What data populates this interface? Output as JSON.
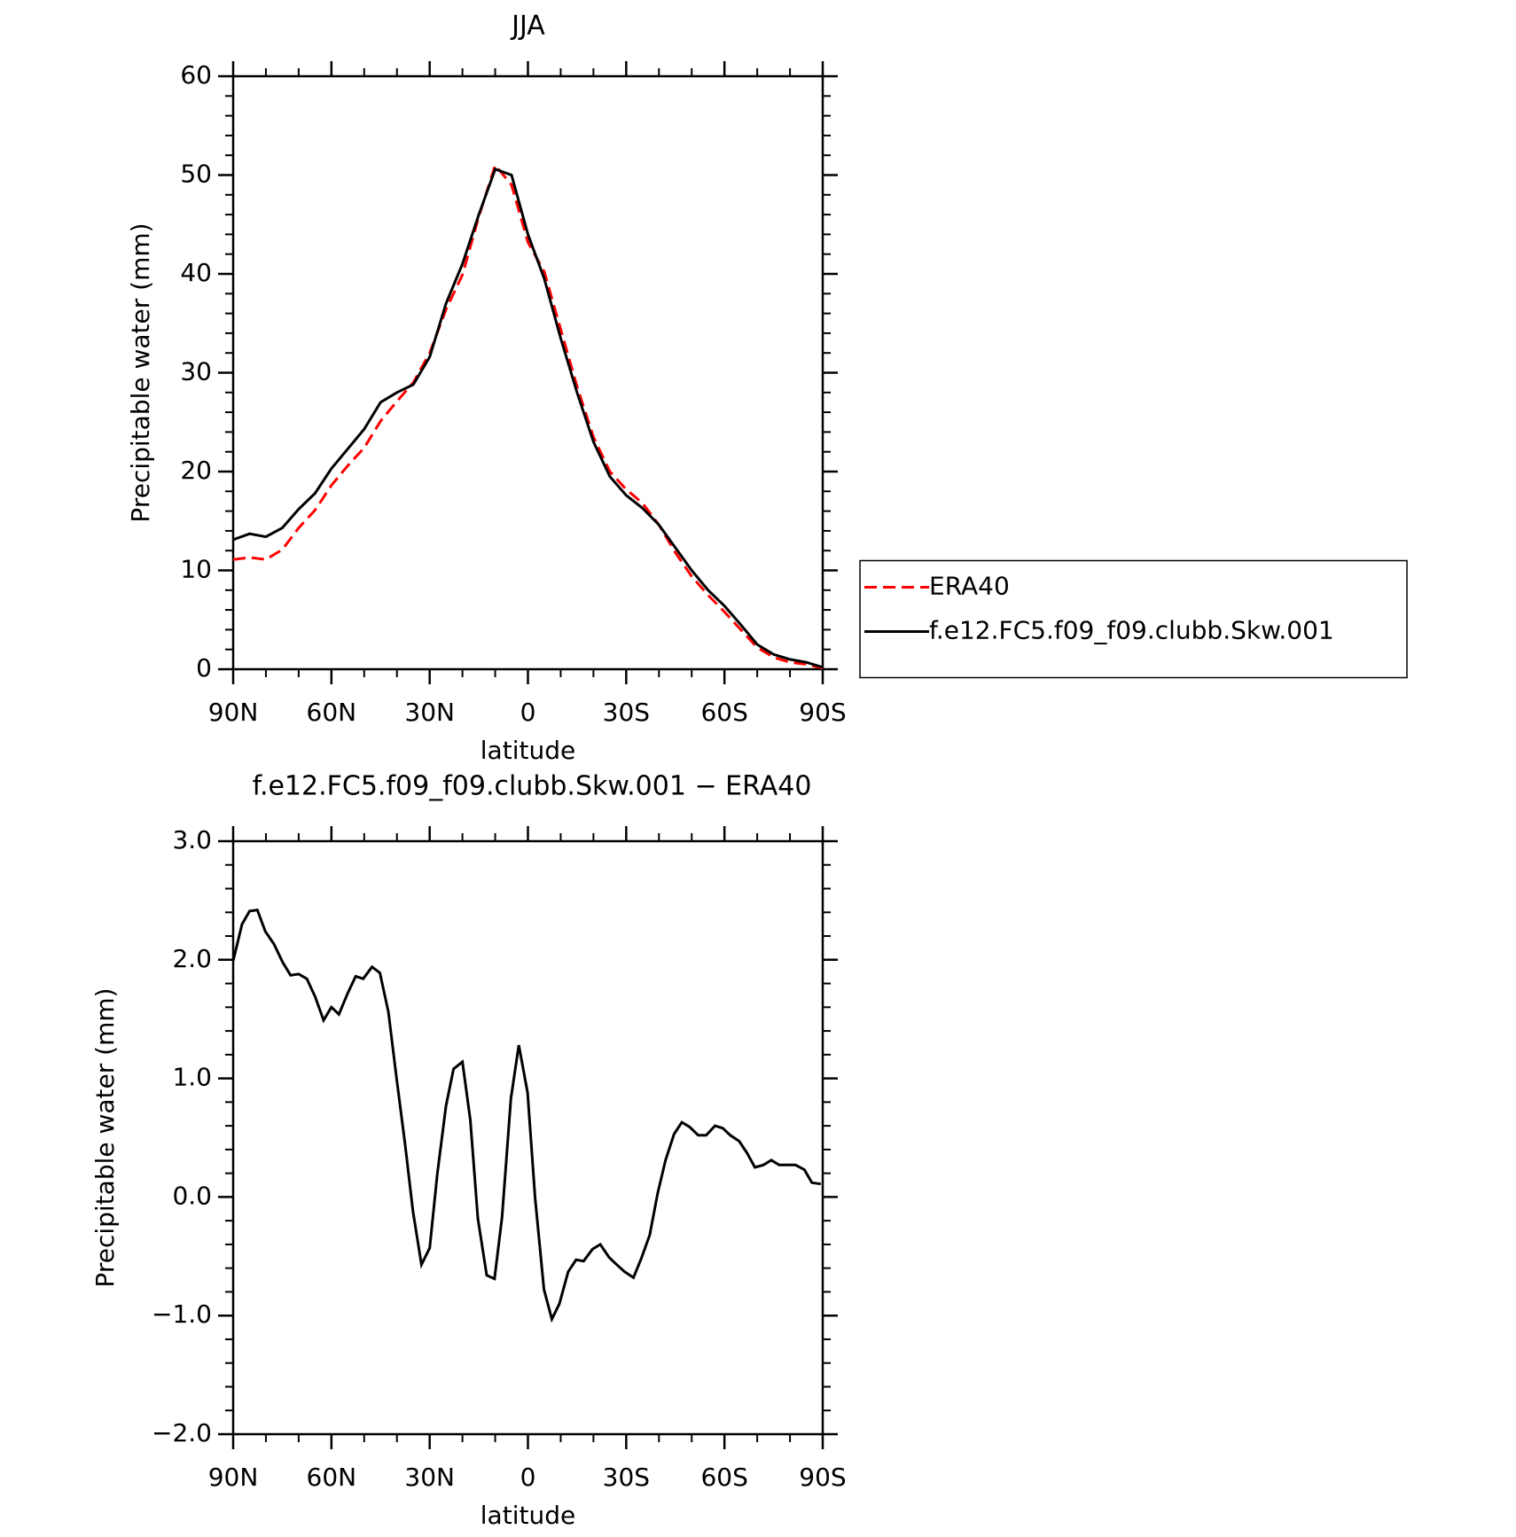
{
  "chart_data": [
    {
      "type": "line",
      "title": "JJA",
      "x_label": "latitude",
      "y_label": "Precipitable water (mm)",
      "x": [
        90,
        85,
        80,
        75,
        70,
        65,
        60,
        55,
        50,
        45,
        40,
        35,
        30,
        25,
        20,
        15,
        10,
        5,
        0,
        -5,
        -10,
        -15,
        -20,
        -25,
        -30,
        -35,
        -40,
        -45,
        -50,
        -55,
        -60,
        -65,
        -70,
        -75,
        -80,
        -85,
        -90
      ],
      "series": [
        {
          "name": "ERA40",
          "color": "#ff0000",
          "line_style": "dashed",
          "values": [
            11.1,
            11.3,
            11.1,
            12.1,
            14.3,
            16.1,
            18.6,
            20.6,
            22.4,
            25.1,
            27.1,
            29.0,
            32.0,
            36.4,
            39.9,
            45.8,
            51.0,
            49.0,
            43.2,
            40.2,
            34.4,
            28.6,
            23.5,
            20.0,
            18.2,
            16.8,
            14.6,
            11.8,
            9.4,
            7.5,
            5.8,
            4.0,
            2.2,
            1.2,
            0.7,
            0.5,
            0.1
          ]
        },
        {
          "name": "f.e12.FC5.f09_f09.clubb.Skw.001",
          "color": "#000000",
          "line_style": "solid",
          "values": [
            13.1,
            13.7,
            13.4,
            14.3,
            16.2,
            17.8,
            20.3,
            22.3,
            24.3,
            27.0,
            28.0,
            28.8,
            31.6,
            37.0,
            41.0,
            46.0,
            50.6,
            50.0,
            44.0,
            39.5,
            33.5,
            28.0,
            23.0,
            19.5,
            17.6,
            16.3,
            14.6,
            12.3,
            10.0,
            8.0,
            6.4,
            4.5,
            2.5,
            1.5,
            1.0,
            0.7,
            0.2
          ]
        }
      ],
      "xlim": [
        90,
        -90
      ],
      "xticks": [
        {
          "value": 90,
          "label": "90N"
        },
        {
          "value": 60,
          "label": "60N"
        },
        {
          "value": 30,
          "label": "30N"
        },
        0,
        {
          "value": -30,
          "label": "30S"
        },
        {
          "value": -60,
          "label": "60S"
        },
        {
          "value": -90,
          "label": "90S"
        }
      ],
      "ylim": [
        0,
        60
      ],
      "yticks": [
        0,
        10,
        20,
        30,
        40,
        50,
        60
      ],
      "legend": "right",
      "grid": false
    },
    {
      "type": "line",
      "title": "f.e12.FC5.f09_f09.clubb.Skw.001 − ERA40",
      "x_label": "latitude",
      "y_label": "Precipitable water (mm)",
      "x": [
        90,
        87.3,
        85,
        82.6,
        80.2,
        77.5,
        74.9,
        72.5,
        70,
        67.5,
        65,
        62.4,
        60,
        57.7,
        55,
        52.6,
        50.3,
        47.6,
        45.2,
        42.6,
        40.2,
        37.5,
        35.1,
        32.5,
        30,
        27.7,
        25,
        22.7,
        20,
        17.6,
        15.3,
        12.6,
        10.2,
        7.9,
        5.2,
        2.8,
        0.1,
        -2.2,
        -4.9,
        -7.3,
        -9.6,
        -12.3,
        -14.7,
        -17,
        -19.7,
        -22.1,
        -24.8,
        -27.1,
        -29.5,
        -32.2,
        -34.6,
        -37.2,
        -39.6,
        -42,
        -44.6,
        -47,
        -49.4,
        -52,
        -54.4,
        -57.1,
        -59.5,
        -61.8,
        -64.5,
        -66.9,
        -69.3,
        -71.9,
        -74.3,
        -76.7,
        -79.3,
        -81.7,
        -84.4,
        -86.7,
        -89.4
      ],
      "values": [
        1.99,
        2.3,
        2.41,
        2.42,
        2.24,
        2.13,
        1.98,
        1.87,
        1.88,
        1.84,
        1.69,
        1.49,
        1.6,
        1.54,
        1.72,
        1.86,
        1.84,
        1.94,
        1.89,
        1.56,
        1.02,
        0.44,
        -0.12,
        -0.57,
        -0.43,
        0.19,
        0.77,
        1.08,
        1.14,
        0.65,
        -0.18,
        -0.66,
        -0.69,
        -0.17,
        0.83,
        1.28,
        0.88,
        -0.01,
        -0.78,
        -1.03,
        -0.9,
        -0.63,
        -0.53,
        -0.54,
        -0.44,
        -0.4,
        -0.51,
        -0.57,
        -0.63,
        -0.68,
        -0.52,
        -0.32,
        0.03,
        0.31,
        0.53,
        0.63,
        0.59,
        0.52,
        0.52,
        0.6,
        0.58,
        0.52,
        0.47,
        0.37,
        0.25,
        0.27,
        0.31,
        0.27,
        0.27,
        0.27,
        0.23,
        0.12,
        0.11
      ],
      "color": "#000000",
      "xlim": [
        90,
        -90
      ],
      "xticks": [
        {
          "value": 90,
          "label": "90N"
        },
        {
          "value": 60,
          "label": "60N"
        },
        {
          "value": 30,
          "label": "30N"
        },
        0,
        {
          "value": -30,
          "label": "30S"
        },
        {
          "value": -60,
          "label": "60S"
        },
        {
          "value": -90,
          "label": "90S"
        }
      ],
      "ylim": [
        -2,
        3
      ],
      "yticks": [
        {
          "value": -2,
          "label": "−2.0"
        },
        {
          "value": -1,
          "label": "−1.0"
        },
        {
          "value": 0,
          "label": "0.0"
        },
        {
          "value": 1,
          "label": "1.0"
        },
        {
          "value": 2,
          "label": "2.0"
        },
        {
          "value": 3,
          "label": "3.0"
        }
      ],
      "grid": false
    }
  ]
}
